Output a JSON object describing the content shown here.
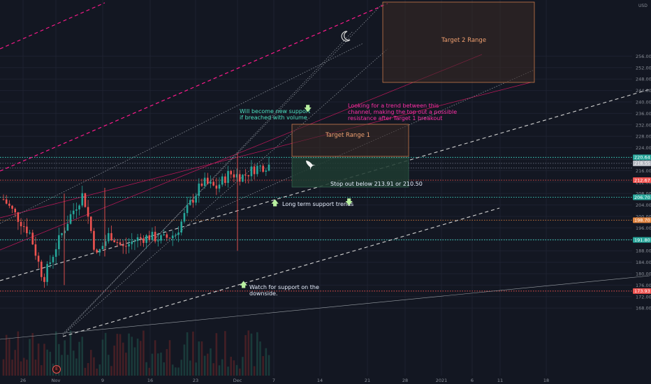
{
  "header": {
    "currency": "USD"
  },
  "colors": {
    "background": "#131722",
    "grid": "#1e2230",
    "up": "#26a69a",
    "down": "#ef5350",
    "magenta": "#ff1a8c",
    "cyan_dotted": "#3fd9c7",
    "white_dashed": "#c8c8c8",
    "target_box_border": "#c97a4a",
    "target_box_fill": "#3a2a24",
    "stop_box_fill": "#1f3b30",
    "note_teal": "#4de0c0",
    "note_pink": "#ff2fa8",
    "note_orange": "#f0a070"
  },
  "icons": {
    "moon": "moon-icon",
    "rocket": "rocket-icon",
    "arrow_down": "arrow-down-icon",
    "arrow_up": "arrow-up-icon",
    "event": "event-marker-icon"
  },
  "annotations": {
    "target2": "Target 2 Range",
    "target1": "Target Range 1",
    "new_support_1": "Will become new support",
    "new_support_2": "if breached with volume",
    "channel_1": "Looking for a trend between this",
    "channel_2": "channel, making the top out a possible",
    "channel_3": "resistance after Target 1 breakout",
    "stop_out": "Stop out below 213.91  or 210.50",
    "long_term": "Long term support trends",
    "watch_1": "Watch for support on the",
    "watch_2": "downside."
  },
  "event_marker": "E",
  "chart_data": {
    "type": "candlestick",
    "title": "",
    "y_unit": "USD",
    "ylim": [
      164,
      260
    ],
    "y_ticks": [
      168,
      172,
      176,
      180,
      184,
      188,
      192,
      196,
      200,
      204,
      208,
      212,
      216,
      220,
      224,
      228,
      232,
      236,
      240,
      244,
      248,
      252,
      256
    ],
    "x_ticks": [
      "26",
      "Nov",
      "9",
      "16",
      "23",
      "Dec",
      "7",
      "14",
      "21",
      "28",
      "2021",
      "6",
      "11",
      "18"
    ],
    "grid": true,
    "price_labels": [
      {
        "value": "220.64",
        "color": "#26a69a"
      },
      {
        "value": "218.55",
        "color": "#b2b5be"
      },
      {
        "value": "212.67",
        "color": "#ef5350"
      },
      {
        "value": "206.70",
        "color": "#26a69a"
      },
      {
        "value": "198.70",
        "color": "#e0823d"
      },
      {
        "value": "191.80",
        "color": "#26a69a"
      },
      {
        "value": "173.93",
        "color": "#ef5350"
      }
    ],
    "levels": [
      {
        "value": 220.64,
        "style": "cyan-dotted"
      },
      {
        "value": 218.55,
        "style": "gray-dotted"
      },
      {
        "value": 216.9,
        "style": "gray-dotted"
      },
      {
        "value": 212.67,
        "style": "red-dotted"
      },
      {
        "value": 206.7,
        "style": "cyan-dotted"
      },
      {
        "value": 198.7,
        "style": "orange-dotted"
      },
      {
        "value": 191.8,
        "style": "cyan-dotted"
      },
      {
        "value": 173.93,
        "style": "red-dotted"
      }
    ],
    "price_path": [
      {
        "date": "Oct 26",
        "close": 206
      },
      {
        "date": "Oct 28",
        "close": 200
      },
      {
        "date": "Oct 30",
        "close": 194
      },
      {
        "date": "Nov 2",
        "close": 178
      },
      {
        "date": "Nov 4",
        "close": 190
      },
      {
        "date": "Nov 6",
        "close": 200
      },
      {
        "date": "Nov 8",
        "close": 208
      },
      {
        "date": "Nov 9",
        "close": 186
      },
      {
        "date": "Nov 11",
        "close": 194
      },
      {
        "date": "Nov 13",
        "close": 189
      },
      {
        "date": "Nov 16",
        "close": 192
      },
      {
        "date": "Nov 18",
        "close": 193
      },
      {
        "date": "Nov 20",
        "close": 192
      },
      {
        "date": "Nov 22",
        "close": 194
      },
      {
        "date": "Nov 24",
        "close": 204
      },
      {
        "date": "Nov 26",
        "close": 212
      },
      {
        "date": "Nov 28",
        "close": 210
      },
      {
        "date": "Nov 30",
        "close": 215
      },
      {
        "date": "Dec 2",
        "close": 214
      },
      {
        "date": "Dec 4",
        "close": 217
      },
      {
        "date": "Dec 6",
        "close": 218
      }
    ]
  }
}
